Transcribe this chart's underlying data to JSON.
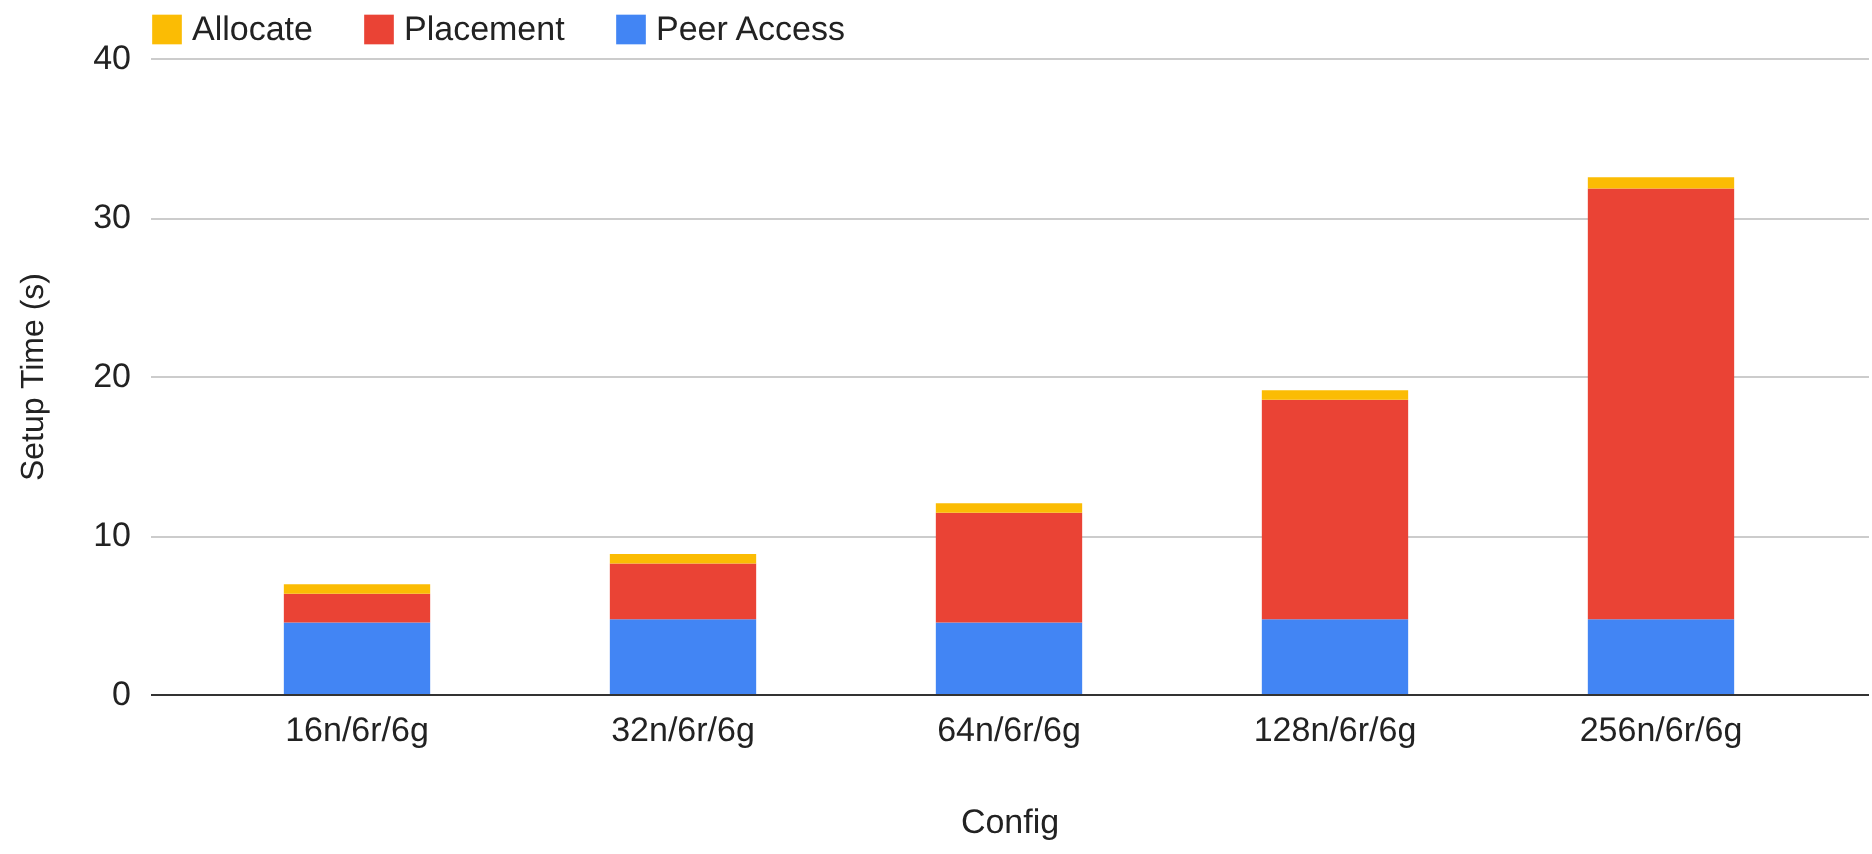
{
  "chart_data": {
    "type": "bar",
    "stacked": true,
    "xlabel": "Config",
    "ylabel": "Setup Time (s)",
    "categories": [
      "16n/6r/6g",
      "32n/6r/6g",
      "64n/6r/6g",
      "128n/6r/6g",
      "256n/6r/6g"
    ],
    "series": [
      {
        "name": "Peer Access",
        "color": "#4285f4",
        "values": [
          4.5,
          4.7,
          4.5,
          4.7,
          4.7
        ]
      },
      {
        "name": "Placement",
        "color": "#ea4335",
        "values": [
          1.8,
          3.5,
          6.9,
          13.8,
          27.1
        ]
      },
      {
        "name": "Allocate",
        "color": "#fbbc04",
        "values": [
          0.6,
          0.6,
          0.6,
          0.6,
          0.7
        ]
      }
    ],
    "ylim": [
      0,
      40
    ],
    "yticks": [
      0,
      10,
      20,
      30,
      40
    ],
    "grid": "y",
    "legend": "top"
  }
}
